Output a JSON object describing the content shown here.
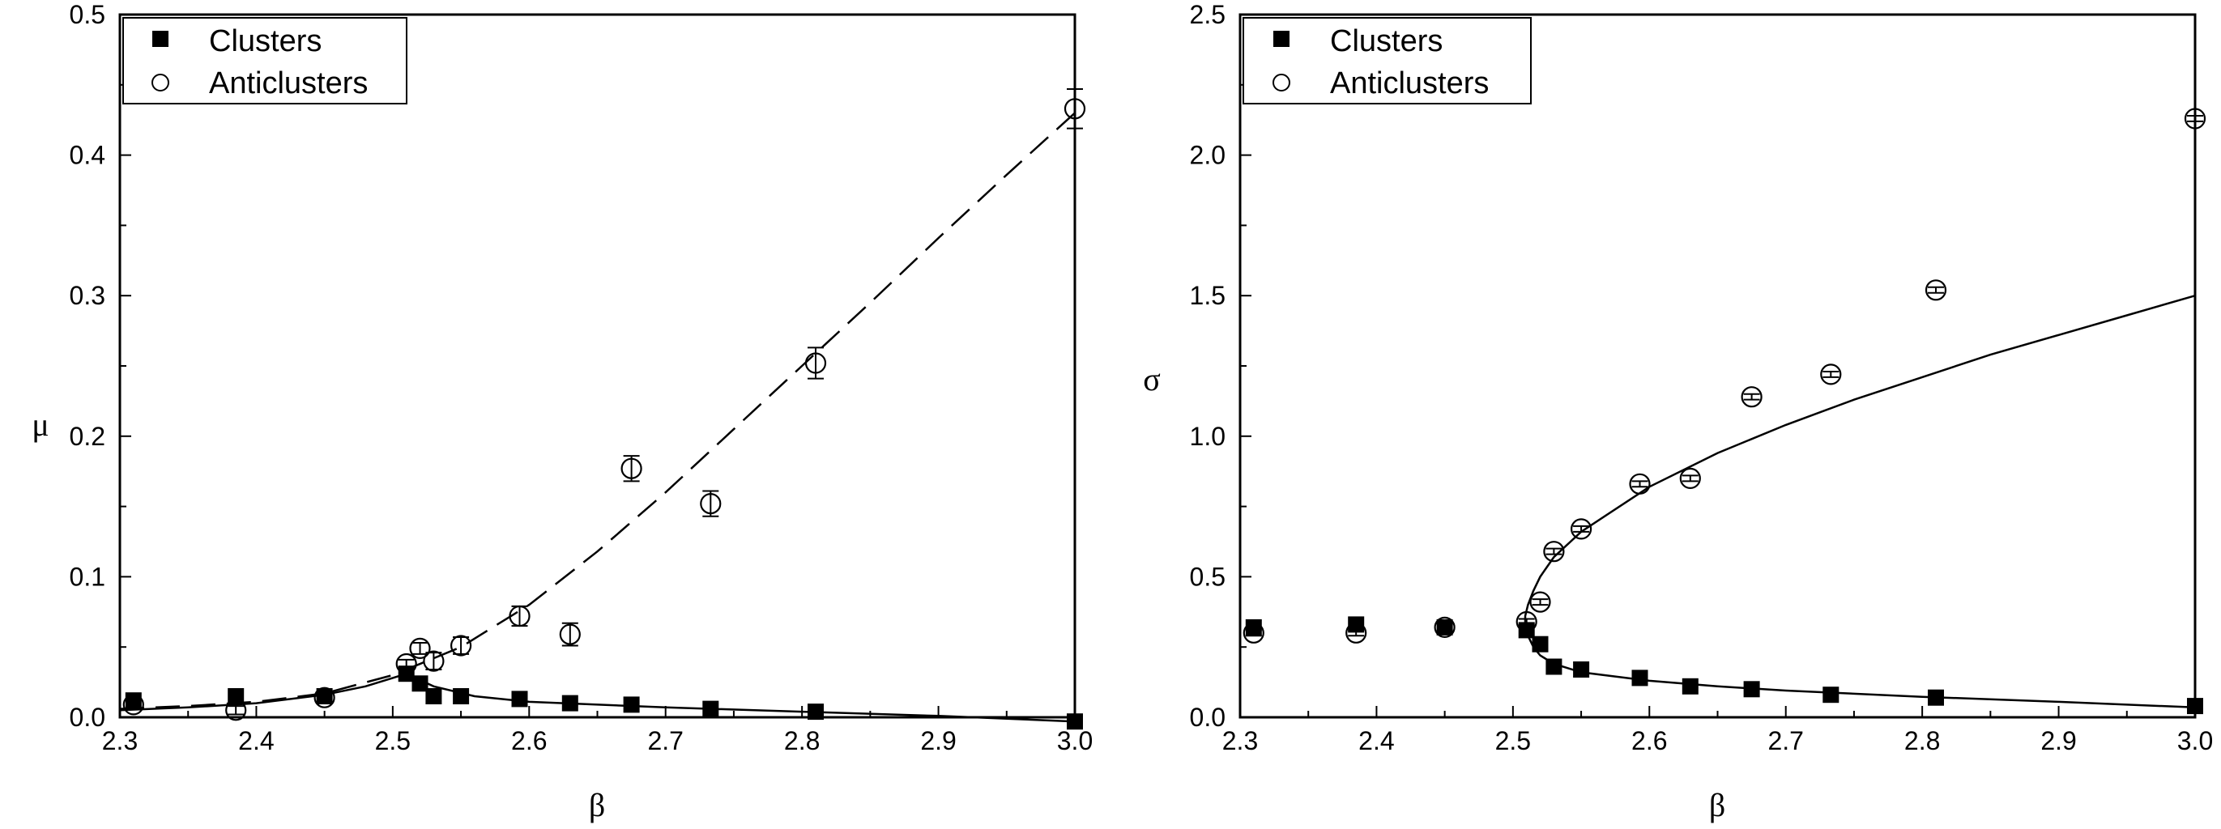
{
  "chart_data": [
    {
      "type": "scatter",
      "xlabel": "β",
      "ylabel": "μ",
      "xlim": [
        2.3,
        3.0
      ],
      "ylim": [
        0.0,
        0.5
      ],
      "xticks": [
        2.3,
        2.4,
        2.5,
        2.6,
        2.7,
        2.8,
        2.9,
        3.0
      ],
      "yticks": [
        0.0,
        0.1,
        0.2,
        0.3,
        0.4,
        0.5
      ],
      "xtick_labels": [
        "2.3",
        "2.4",
        "2.5",
        "2.6",
        "2.7",
        "2.8",
        "2.9",
        "3.0"
      ],
      "ytick_labels": [
        "0.0",
        "0.1",
        "0.2",
        "0.3",
        "0.4",
        "0.5"
      ],
      "legend_position": "top-left",
      "grid": false,
      "series": [
        {
          "name": "Clusters",
          "marker": "filled-square",
          "points": [
            {
              "x": 2.31,
              "y": 0.012
            },
            {
              "x": 2.385,
              "y": 0.015
            },
            {
              "x": 2.45,
              "y": 0.015
            },
            {
              "x": 2.51,
              "y": 0.031
            },
            {
              "x": 2.52,
              "y": 0.024
            },
            {
              "x": 2.53,
              "y": 0.015
            },
            {
              "x": 2.55,
              "y": 0.015
            },
            {
              "x": 2.593,
              "y": 0.013
            },
            {
              "x": 2.63,
              "y": 0.01
            },
            {
              "x": 2.675,
              "y": 0.009
            },
            {
              "x": 2.733,
              "y": 0.006
            },
            {
              "x": 2.81,
              "y": 0.004
            },
            {
              "x": 3.0,
              "y": -0.003
            }
          ]
        },
        {
          "name": "Anticlusters",
          "marker": "open-circle",
          "points": [
            {
              "x": 2.31,
              "y": 0.009,
              "err": 0.003
            },
            {
              "x": 2.385,
              "y": 0.005,
              "err": 0.003
            },
            {
              "x": 2.45,
              "y": 0.014,
              "err": 0.003
            },
            {
              "x": 2.51,
              "y": 0.038,
              "err": 0.003
            },
            {
              "x": 2.52,
              "y": 0.049,
              "err": 0.004
            },
            {
              "x": 2.53,
              "y": 0.04,
              "err": 0.006
            },
            {
              "x": 2.55,
              "y": 0.051,
              "err": 0.006
            },
            {
              "x": 2.593,
              "y": 0.072,
              "err": 0.007
            },
            {
              "x": 2.63,
              "y": 0.059,
              "err": 0.008
            },
            {
              "x": 2.675,
              "y": 0.177,
              "err": 0.009
            },
            {
              "x": 2.733,
              "y": 0.152,
              "err": 0.009
            },
            {
              "x": 2.81,
              "y": 0.252,
              "err": 0.011
            },
            {
              "x": 3.0,
              "y": 0.433,
              "err": 0.014
            }
          ]
        }
      ],
      "fit_lines": [
        {
          "style": "solid",
          "points": [
            [
              2.3,
              0.005
            ],
            [
              2.35,
              0.007
            ],
            [
              2.4,
              0.01
            ],
            [
              2.45,
              0.016
            ],
            [
              2.48,
              0.022
            ],
            [
              2.5,
              0.028
            ],
            [
              2.51,
              0.031
            ],
            [
              2.53,
              0.022
            ],
            [
              2.56,
              0.015
            ],
            [
              2.6,
              0.011
            ],
            [
              2.7,
              0.007
            ],
            [
              2.8,
              0.004
            ],
            [
              2.9,
              0.001
            ],
            [
              3.0,
              -0.003
            ]
          ]
        },
        {
          "style": "dashed",
          "points": [
            [
              2.3,
              0.006
            ],
            [
              2.35,
              0.008
            ],
            [
              2.4,
              0.011
            ],
            [
              2.45,
              0.017
            ],
            [
              2.5,
              0.03
            ],
            [
              2.55,
              0.05
            ],
            [
              2.6,
              0.08
            ],
            [
              2.65,
              0.118
            ],
            [
              2.7,
              0.16
            ],
            [
              2.75,
              0.205
            ],
            [
              2.8,
              0.25
            ],
            [
              2.85,
              0.295
            ],
            [
              2.9,
              0.341
            ],
            [
              2.95,
              0.386
            ],
            [
              3.0,
              0.43
            ]
          ]
        }
      ]
    },
    {
      "type": "scatter",
      "xlabel": "β",
      "ylabel": "σ",
      "xlim": [
        2.3,
        3.0
      ],
      "ylim": [
        0.0,
        2.5
      ],
      "xticks": [
        2.3,
        2.4,
        2.5,
        2.6,
        2.7,
        2.8,
        2.9,
        3.0
      ],
      "yticks": [
        0.0,
        0.5,
        1.0,
        1.5,
        2.0,
        2.5
      ],
      "xtick_labels": [
        "2.3",
        "2.4",
        "2.5",
        "2.6",
        "2.7",
        "2.8",
        "2.9",
        "3.0"
      ],
      "ytick_labels": [
        "0.0",
        "0.5",
        "1.0",
        "1.5",
        "2.0",
        "2.5"
      ],
      "legend_position": "top-left",
      "grid": false,
      "series": [
        {
          "name": "Clusters",
          "marker": "filled-square",
          "points": [
            {
              "x": 2.31,
              "y": 0.32
            },
            {
              "x": 2.385,
              "y": 0.33
            },
            {
              "x": 2.45,
              "y": 0.32
            },
            {
              "x": 2.51,
              "y": 0.31
            },
            {
              "x": 2.52,
              "y": 0.26
            },
            {
              "x": 2.53,
              "y": 0.18
            },
            {
              "x": 2.55,
              "y": 0.17
            },
            {
              "x": 2.593,
              "y": 0.14
            },
            {
              "x": 2.63,
              "y": 0.11
            },
            {
              "x": 2.675,
              "y": 0.1
            },
            {
              "x": 2.733,
              "y": 0.08
            },
            {
              "x": 2.81,
              "y": 0.07
            },
            {
              "x": 3.0,
              "y": 0.04
            }
          ]
        },
        {
          "name": "Anticlusters",
          "marker": "open-circle",
          "points": [
            {
              "x": 2.31,
              "y": 0.3,
              "err": 0.01
            },
            {
              "x": 2.385,
              "y": 0.3,
              "err": 0.01
            },
            {
              "x": 2.45,
              "y": 0.32,
              "err": 0.01
            },
            {
              "x": 2.51,
              "y": 0.34,
              "err": 0.01
            },
            {
              "x": 2.52,
              "y": 0.41,
              "err": 0.01
            },
            {
              "x": 2.53,
              "y": 0.59,
              "err": 0.01
            },
            {
              "x": 2.55,
              "y": 0.67,
              "err": 0.01
            },
            {
              "x": 2.593,
              "y": 0.83,
              "err": 0.01
            },
            {
              "x": 2.63,
              "y": 0.85,
              "err": 0.01
            },
            {
              "x": 2.675,
              "y": 1.14,
              "err": 0.01
            },
            {
              "x": 2.733,
              "y": 1.22,
              "err": 0.01
            },
            {
              "x": 2.81,
              "y": 1.52,
              "err": 0.01
            },
            {
              "x": 3.0,
              "y": 2.13,
              "err": 0.01
            }
          ]
        }
      ],
      "fit_lines": [
        {
          "style": "solid",
          "points": [
            [
              2.509,
              0.33
            ],
            [
              2.509,
              0.36
            ],
            [
              2.511,
              0.4
            ],
            [
              2.515,
              0.45
            ],
            [
              2.52,
              0.5
            ],
            [
              2.53,
              0.57
            ],
            [
              2.55,
              0.66
            ],
            [
              2.6,
              0.82
            ],
            [
              2.65,
              0.94
            ],
            [
              2.7,
              1.04
            ],
            [
              2.75,
              1.13
            ],
            [
              2.8,
              1.21
            ],
            [
              2.85,
              1.29
            ],
            [
              2.9,
              1.36
            ],
            [
              2.95,
              1.43
            ],
            [
              3.0,
              1.5
            ]
          ]
        },
        {
          "style": "solid",
          "points": [
            [
              2.509,
              0.33
            ],
            [
              2.511,
              0.29
            ],
            [
              2.515,
              0.25
            ],
            [
              2.52,
              0.22
            ],
            [
              2.53,
              0.19
            ],
            [
              2.55,
              0.16
            ],
            [
              2.6,
              0.13
            ],
            [
              2.65,
              0.11
            ],
            [
              2.7,
              0.095
            ],
            [
              2.8,
              0.073
            ],
            [
              2.9,
              0.055
            ],
            [
              3.0,
              0.035
            ]
          ]
        }
      ]
    }
  ]
}
